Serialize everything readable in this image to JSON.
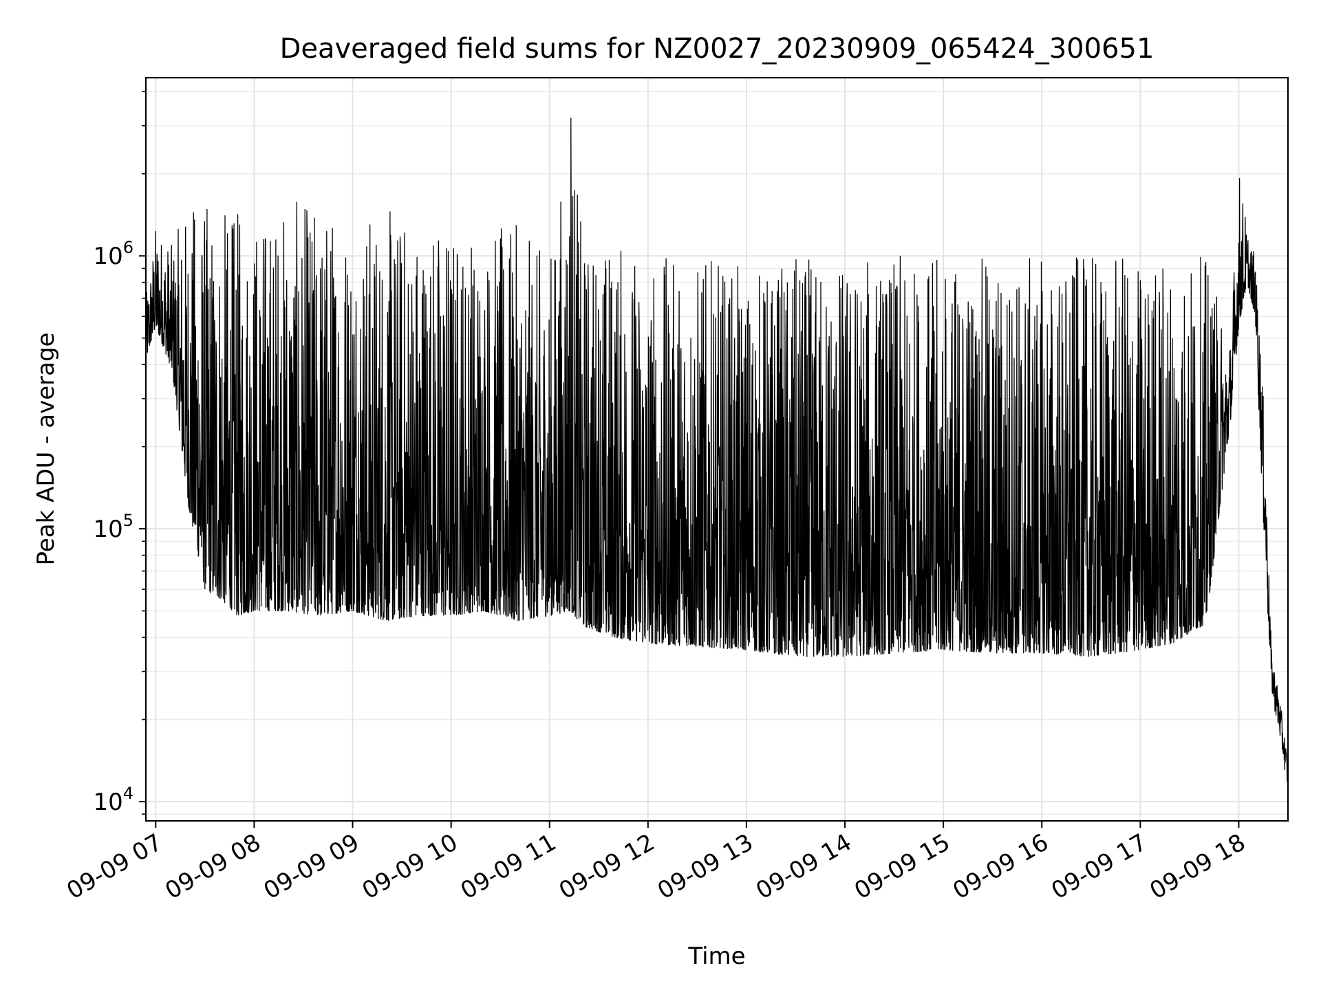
{
  "chart_data": {
    "type": "line",
    "title": "Deaveraged field sums for NZ0027_20230909_065424_300651",
    "xlabel": "Time",
    "ylabel": "Peak ADU - average",
    "y_scale": "log",
    "ylim": [
      8500,
      4500000
    ],
    "xlim": [
      "2023-09-09 06:54",
      "2023-09-09 18:30"
    ],
    "x_ticks": [
      "2023-09-09 07:00",
      "2023-09-09 08:00",
      "2023-09-09 09:00",
      "2023-09-09 10:00",
      "2023-09-09 11:00",
      "2023-09-09 12:00",
      "2023-09-09 13:00",
      "2023-09-09 14:00",
      "2023-09-09 15:00",
      "2023-09-09 16:00",
      "2023-09-09 17:00",
      "2023-09-09 18:00"
    ],
    "x_tick_labels": [
      "09-09 07",
      "09-09 08",
      "09-09 09",
      "09-09 10",
      "09-09 11",
      "09-09 12",
      "09-09 13",
      "09-09 14",
      "09-09 15",
      "09-09 16",
      "09-09 17",
      "09-09 18"
    ],
    "y_ticks": [
      10000,
      100000,
      1000000
    ],
    "y_tick_labels": [
      {
        "base": "10",
        "exp": "4"
      },
      {
        "base": "10",
        "exp": "5"
      },
      {
        "base": "10",
        "exp": "6"
      }
    ],
    "grid": "major and minor",
    "line_color": "#000000",
    "series": [
      {
        "x": [
          "2023-09-09 06:54",
          "2023-09-09 07:00",
          "2023-09-09 07:10",
          "2023-09-09 07:20",
          "2023-09-09 07:30",
          "2023-09-09 07:40",
          "2023-09-09 07:50",
          "2023-09-09 08:00",
          "2023-09-09 08:20",
          "2023-09-09 08:40",
          "2023-09-09 09:00",
          "2023-09-09 09:20",
          "2023-09-09 09:40",
          "2023-09-09 10:00",
          "2023-09-09 10:20",
          "2023-09-09 10:40",
          "2023-09-09 11:00",
          "2023-09-09 11:13",
          "2023-09-09 11:20",
          "2023-09-09 11:40",
          "2023-09-09 12:00",
          "2023-09-09 12:30",
          "2023-09-09 13:00",
          "2023-09-09 13:30",
          "2023-09-09 14:00",
          "2023-09-09 14:30",
          "2023-09-09 15:00",
          "2023-09-09 15:30",
          "2023-09-09 16:00",
          "2023-09-09 16:30",
          "2023-09-09 17:00",
          "2023-09-09 17:20",
          "2023-09-09 17:40",
          "2023-09-09 17:55",
          "2023-09-09 18:00",
          "2023-09-09 18:05",
          "2023-09-09 18:10",
          "2023-09-09 18:15",
          "2023-09-09 18:20",
          "2023-09-09 18:25",
          "2023-09-09 18:30"
        ],
        "low": [
          420000,
          550000,
          380000,
          120000,
          60000,
          55000,
          48000,
          50000,
          50000,
          48000,
          50000,
          46000,
          48000,
          48000,
          50000,
          46000,
          48000,
          50000,
          44000,
          40000,
          38000,
          37000,
          36000,
          34000,
          34000,
          35000,
          36000,
          35000,
          35000,
          34000,
          36000,
          38000,
          45000,
          250000,
          550000,
          800000,
          600000,
          100000,
          25000,
          17000,
          11000
        ],
        "high": [
          700000,
          1300000,
          1100000,
          1600000,
          1600000,
          1500000,
          1500000,
          1500000,
          1600000,
          1600000,
          1600000,
          1500000,
          1500000,
          1400000,
          1300000,
          1300000,
          1000000,
          3200000,
          1200000,
          1200000,
          1000000,
          1000000,
          900000,
          1000000,
          1000000,
          1000000,
          1000000,
          1000000,
          1000000,
          1000000,
          1000000,
          1100000,
          1000000,
          500000,
          2200000,
          1300000,
          1000000,
          300000,
          35000,
          24000,
          14000
        ]
      }
    ]
  }
}
